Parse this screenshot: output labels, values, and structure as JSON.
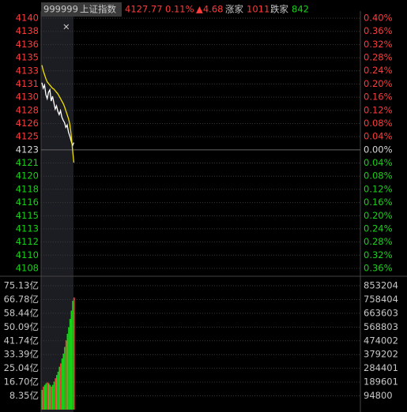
{
  "header": {
    "code": "999999",
    "name": "上证指数",
    "price": 4127.77,
    "change_pct": "0.11%",
    "change": "▲4.68",
    "up_label": "涨家",
    "up_count": 1011,
    "down_label": "跌家",
    "down_count": 842,
    "close": "×"
  },
  "chart_data": [
    {
      "type": "line",
      "xlim": [
        0,
        240
      ],
      "ylim": [
        4108.25,
        4139.58
      ],
      "yticks": [
        {
          "value": 4139.58,
          "label": "4140"
        },
        {
          "value": 4137.93,
          "label": "4138"
        },
        {
          "value": 4136.28,
          "label": "4136"
        },
        {
          "value": 4134.63,
          "label": "4135"
        },
        {
          "value": 4132.98,
          "label": "4133"
        },
        {
          "value": 4131.34,
          "label": "4131"
        },
        {
          "value": 4129.69,
          "label": "4130"
        },
        {
          "value": 4128.04,
          "label": "4128"
        },
        {
          "value": 4126.39,
          "label": "4126"
        },
        {
          "value": 4124.74,
          "label": "4125"
        },
        {
          "value": 4123.09,
          "label": "4123"
        },
        {
          "value": 4121.44,
          "label": "4121"
        },
        {
          "value": 4119.79,
          "label": "4120"
        },
        {
          "value": 4118.14,
          "label": "4118"
        },
        {
          "value": 4116.49,
          "label": "4116"
        },
        {
          "value": 4114.84,
          "label": "4115"
        },
        {
          "value": 4113.2,
          "label": "4113"
        },
        {
          "value": 4111.55,
          "label": "4112"
        },
        {
          "value": 4109.9,
          "label": "4110"
        },
        {
          "value": 4108.25,
          "label": "4108"
        }
      ],
      "y2lim": [
        -0.36,
        0.4
      ],
      "y2ticks": [
        {
          "value": 0.4,
          "label": "0.40%"
        },
        {
          "value": 0.36,
          "label": "0.36%"
        },
        {
          "value": 0.32,
          "label": "0.32%"
        },
        {
          "value": 0.28,
          "label": "0.28%"
        },
        {
          "value": 0.24,
          "label": "0.24%"
        },
        {
          "value": 0.2,
          "label": "0.20%"
        },
        {
          "value": 0.16,
          "label": "0.16%"
        },
        {
          "value": 0.12,
          "label": "0.12%"
        },
        {
          "value": 0.08,
          "label": "0.08%"
        },
        {
          "value": 0.04,
          "label": "0.04%"
        },
        {
          "value": 0,
          "label": "0.00%"
        },
        {
          "value": -0.04,
          "label": "0.04%"
        },
        {
          "value": -0.08,
          "label": "0.08%"
        },
        {
          "value": -0.12,
          "label": "0.12%"
        },
        {
          "value": -0.16,
          "label": "0.16%"
        },
        {
          "value": -0.2,
          "label": "0.20%"
        },
        {
          "value": -0.24,
          "label": "0.24%"
        },
        {
          "value": -0.28,
          "label": "0.28%"
        },
        {
          "value": -0.32,
          "label": "0.32%"
        },
        {
          "value": -0.36,
          "label": "0.36%"
        }
      ],
      "grid": true,
      "series": [
        {
          "color": "#ffffff",
          "values": [
            4131.5,
            4130.8,
            4131.2,
            4130.0,
            4129.5,
            4130.3,
            4130.6,
            4129.2,
            4129.8,
            4129.0,
            4128.2,
            4128.6,
            4127.9,
            4127.5,
            4128.0,
            4127.2,
            4126.8,
            4126.5,
            4125.9,
            4126.2,
            4125.3,
            4124.8,
            4124.2,
            4123.6,
            4124.0
          ]
        },
        {
          "color": "#f0e000",
          "values": [
            4133.7,
            4133.0,
            4132.5,
            4132.0,
            4131.6,
            4131.4,
            4131.2,
            4131.0,
            4130.8,
            4130.7,
            4130.5,
            4130.3,
            4130.1,
            4129.8,
            4129.5,
            4129.2,
            4128.9,
            4128.5,
            4128.0,
            4127.5,
            4127.0,
            4126.3,
            4125.0,
            4123.2,
            4121.5
          ]
        }
      ]
    },
    {
      "type": "bar",
      "xlim": [
        0,
        240
      ],
      "ylim": [
        0,
        75.13
      ],
      "yticks": [
        {
          "value": 75.13,
          "label": "75.13亿"
        },
        {
          "value": 66.78,
          "label": "66.78亿"
        },
        {
          "value": 58.44,
          "label": "58.44亿"
        },
        {
          "value": 50.09,
          "label": "50.09亿"
        },
        {
          "value": 41.74,
          "label": "41.74亿"
        },
        {
          "value": 33.39,
          "label": "33.39亿"
        },
        {
          "value": 25.04,
          "label": "25.04亿"
        },
        {
          "value": 16.7,
          "label": "16.70亿"
        },
        {
          "value": 8.35,
          "label": "8.35亿"
        }
      ],
      "y2lim": [
        0,
        853204
      ],
      "y2ticks": [
        853204,
        758404,
        663603,
        568803,
        474002,
        379202,
        284401,
        189601,
        94800
      ],
      "grid": true,
      "values": [
        12,
        14,
        15,
        16,
        16.5,
        16,
        15,
        14,
        15,
        17,
        19,
        21,
        23,
        26,
        28,
        31,
        34,
        38,
        42,
        46,
        50,
        55,
        60,
        66,
        68
      ],
      "colors": [
        "#19d219",
        "#ff3b3b",
        "#19d219",
        "#19d219",
        "#ff3b3b",
        "#19d219",
        "#19d219",
        "#ff3b3b",
        "#19d219",
        "#19d219",
        "#ff3b3b",
        "#19d219",
        "#19d219",
        "#19d219",
        "#ff3b3b",
        "#19d219",
        "#19d219",
        "#19d219",
        "#ff3b3b",
        "#19d219",
        "#19d219",
        "#19d219",
        "#19d219",
        "#19d219",
        "#ff3b3b"
      ]
    }
  ]
}
